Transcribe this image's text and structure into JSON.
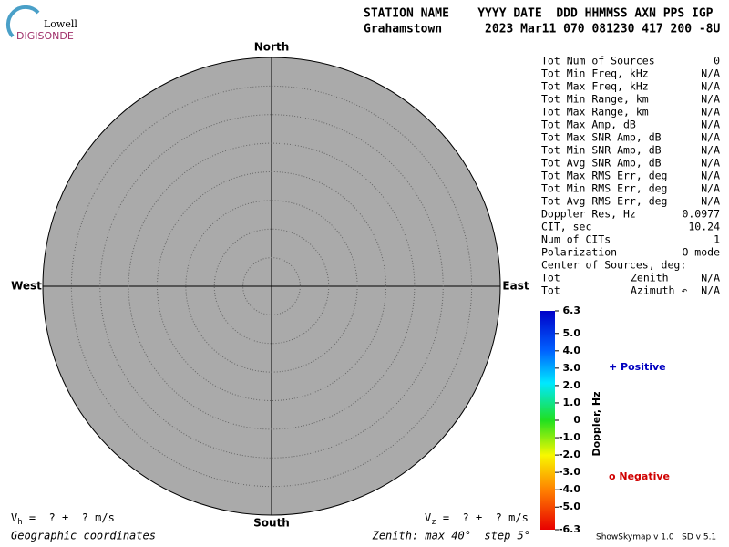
{
  "header": {
    "logo_top": "Lowell",
    "logo_bottom": "DIGISONDE",
    "columns_line": "STATION NAME    YYYY DATE  DDD HHMMSS AXN PPS IGP",
    "values_line": "Grahamstown      2023 Mar11 070 081230 417 200 -8U"
  },
  "compass": {
    "north": "North",
    "south": "South",
    "west": "West",
    "east": "East"
  },
  "stats": {
    "rows": [
      [
        "Tot Num of Sources",
        "0"
      ],
      [
        "Tot Min Freq, kHz",
        "N/A"
      ],
      [
        "Tot Max Freq, kHz",
        "N/A"
      ],
      [
        "Tot Min Range, km",
        "N/A"
      ],
      [
        "Tot Max Range, km",
        "N/A"
      ],
      [
        "Tot Max Amp, dB",
        "N/A"
      ],
      [
        "Tot Max SNR Amp, dB",
        "N/A"
      ],
      [
        "Tot Min SNR Amp, dB",
        "N/A"
      ],
      [
        "Tot Avg SNR Amp, dB",
        "N/A"
      ],
      [
        "Tot Max RMS Err, deg",
        "N/A"
      ],
      [
        "Tot Min RMS Err, deg",
        "N/A"
      ],
      [
        "Tot Avg RMS Err, deg",
        "N/A"
      ],
      [
        "Doppler Res, Hz",
        "0.0977"
      ],
      [
        "CIT, sec",
        "10.24"
      ],
      [
        "Num of CITs",
        "1"
      ],
      [
        "Polarization",
        "O-mode"
      ],
      [
        "Center of Sources, deg:"
      ],
      [
        "Tot",
        "Zenith",
        "N/A"
      ],
      [
        "Tot",
        "Azimuth ↶",
        "N/A"
      ]
    ]
  },
  "colorbar": {
    "label": "Doppler, Hz",
    "ticks": [
      {
        "value": 6.3,
        "label": "6.3"
      },
      {
        "value": 5,
        "label": "5.0"
      },
      {
        "value": 4,
        "label": "4.0"
      },
      {
        "value": 3,
        "label": "3.0"
      },
      {
        "value": 2,
        "label": "2.0"
      },
      {
        "value": 1,
        "label": "1.0"
      },
      0,
      {
        "value": -1,
        "label": "-1.0"
      },
      {
        "value": -2,
        "label": "-2.0"
      },
      {
        "value": -3,
        "label": "-3.0"
      },
      {
        "value": -4,
        "label": "-4.0"
      },
      {
        "value": -5,
        "label": "-5.0"
      },
      {
        "value": -6.3,
        "label": "-6.3"
      }
    ]
  },
  "legend": {
    "positive": "+ Positive",
    "negative": "o Negative"
  },
  "footer": {
    "vh_symbol": "V",
    "vh_sub": "h",
    "vh_text": " =  ? ±  ? m/s",
    "vz_symbol": "V",
    "vz_sub": "z",
    "vz_text": " =  ? ±  ? m/s",
    "coords": "Geographic coordinates",
    "zenith": "Zenith: max 40°  step 5°",
    "version": "ShowSkymap v 1.0   SD v 5.1"
  }
}
